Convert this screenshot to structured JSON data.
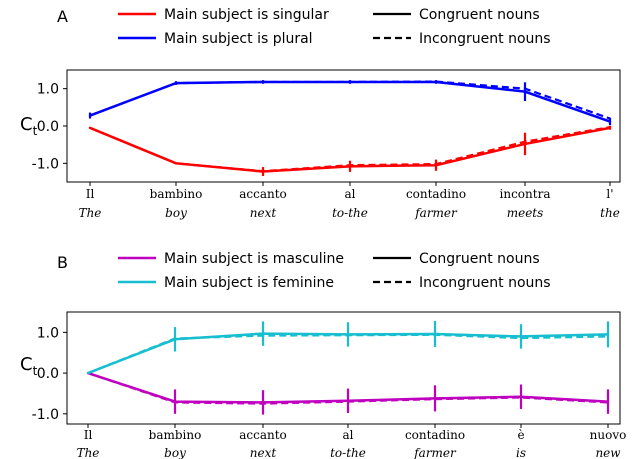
{
  "chart_data": [
    {
      "panel": "A",
      "type": "line",
      "ylabel": "C",
      "ylabel_sub": "t",
      "ylim": [
        -1.5,
        1.5
      ],
      "yticks": [
        "1.0",
        "0.0",
        "-1.0"
      ],
      "ytick_values": [
        1.0,
        0.0,
        -1.0
      ],
      "categories": [
        "Il",
        "bambino",
        "accanto",
        "al",
        "contadino",
        "incontra",
        "l'"
      ],
      "categories_translation": [
        "The",
        "boy",
        "next",
        "to-the",
        "farmer",
        "meets",
        "the"
      ],
      "series": [
        {
          "name": "Main subject is singular",
          "color": "#ff0000",
          "congruent": [
            -0.05,
            -1.0,
            -1.22,
            -1.08,
            -1.05,
            -0.48,
            -0.05
          ],
          "incongruent": [
            -0.05,
            -1.0,
            -1.21,
            -1.05,
            -1.02,
            -0.42,
            -0.03
          ],
          "error": [
            0.0,
            0.02,
            0.12,
            0.15,
            0.15,
            0.3,
            0.05
          ]
        },
        {
          "name": "Main subject is plural",
          "color": "#0000ff",
          "congruent": [
            0.28,
            1.15,
            1.18,
            1.18,
            1.18,
            0.92,
            0.12
          ],
          "incongruent": [
            0.28,
            1.15,
            1.18,
            1.18,
            1.19,
            1.0,
            0.2
          ],
          "error": [
            0.08,
            0.05,
            0.05,
            0.05,
            0.05,
            0.25,
            0.1
          ]
        }
      ],
      "line_styles": [
        {
          "name": "Congruent nouns",
          "style": "solid"
        },
        {
          "name": "Incongruent nouns",
          "style": "dashed"
        }
      ],
      "legend_placement": "top",
      "grid": false
    },
    {
      "panel": "B",
      "type": "line",
      "ylabel": "C",
      "ylabel_sub": "t",
      "ylim": [
        -1.25,
        1.5
      ],
      "yticks": [
        "1.0",
        "0.0",
        "-1.0"
      ],
      "ytick_values": [
        1.0,
        0.0,
        -1.0
      ],
      "categories": [
        "Il",
        "bambino",
        "accanto",
        "al",
        "contadino",
        "è",
        "nuovo"
      ],
      "categories_translation": [
        "The",
        "boy",
        "next",
        "to-the",
        "farmer",
        "is",
        "new"
      ],
      "series": [
        {
          "name": "Main subject is masculine",
          "color": "#bf00bf",
          "congruent": [
            0.0,
            -0.7,
            -0.72,
            -0.68,
            -0.62,
            -0.58,
            -0.7
          ],
          "incongruent": [
            0.0,
            -0.72,
            -0.75,
            -0.7,
            -0.64,
            -0.6,
            -0.72
          ],
          "error": [
            0.0,
            0.3,
            0.3,
            0.3,
            0.32,
            0.3,
            0.3
          ]
        },
        {
          "name": "Main subject is feminine",
          "color": "#17becf",
          "congruent": [
            0.0,
            0.83,
            0.97,
            0.95,
            0.96,
            0.9,
            0.95
          ],
          "incongruent": [
            0.0,
            0.85,
            0.92,
            0.93,
            0.94,
            0.86,
            0.9
          ],
          "error": [
            0.0,
            0.3,
            0.3,
            0.3,
            0.32,
            0.3,
            0.32
          ]
        }
      ],
      "line_styles": [
        {
          "name": "Congruent nouns",
          "style": "solid"
        },
        {
          "name": "Incongruent nouns",
          "style": "dashed"
        }
      ],
      "legend_placement": "top",
      "grid": false
    }
  ]
}
